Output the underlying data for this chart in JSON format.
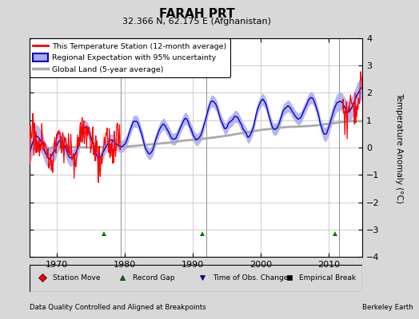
{
  "title": "FARAH PRT",
  "subtitle": "32.366 N, 62.175 E (Afghanistan)",
  "ylabel": "Temperature Anomaly (°C)",
  "xlim": [
    1966.0,
    2015.0
  ],
  "ylim": [
    -4,
    4
  ],
  "yticks": [
    -4,
    -3,
    -2,
    -1,
    0,
    1,
    2,
    3,
    4
  ],
  "xticks": [
    1970,
    1980,
    1990,
    2000,
    2010
  ],
  "background_color": "#d8d8d8",
  "plot_bg_color": "#ffffff",
  "grid_color": "#bbbbbb",
  "vertical_lines": [
    1979.5,
    1992.0,
    2011.5
  ],
  "vertical_line_color": "#999999",
  "record_gap_markers": [
    {
      "x": 1977.0
    },
    {
      "x": 1991.5
    },
    {
      "x": 2011.0
    }
  ],
  "footer_left": "Data Quality Controlled and Aligned at Breakpoints",
  "footer_right": "Berkeley Earth",
  "legend_labels": [
    "This Temperature Station (12-month average)",
    "Regional Expectation with 95% uncertainty",
    "Global Land (5-year average)"
  ],
  "regional_color": "#0000cc",
  "regional_uncertainty_color": "#aaaaee",
  "global_land_color": "#aaaaaa",
  "station_color": "red",
  "station_gap_start": 1979.5,
  "station_gap_end": 2012.0
}
